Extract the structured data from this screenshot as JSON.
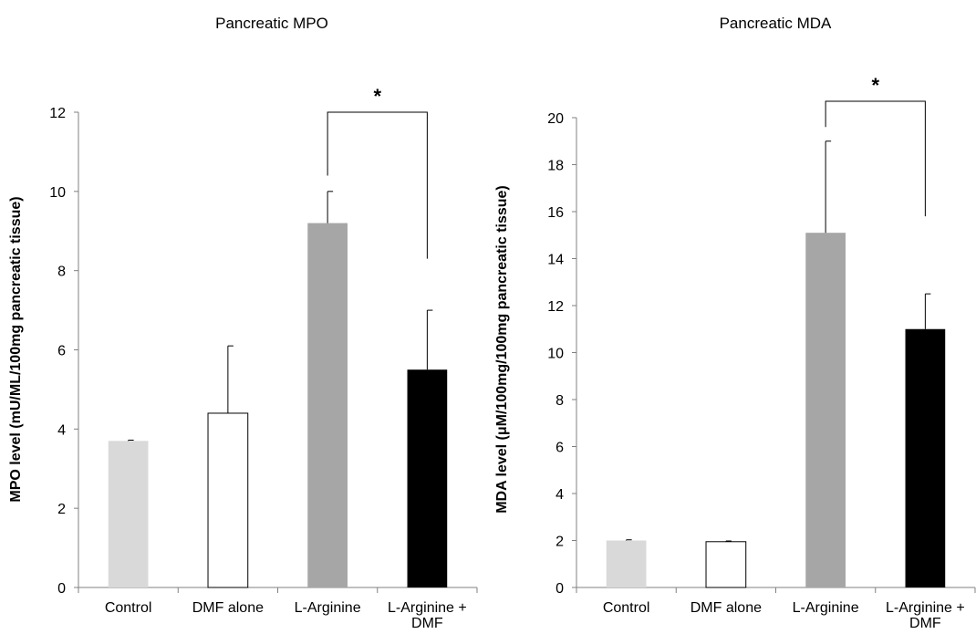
{
  "chart_data": [
    {
      "type": "bar",
      "title": "Pancreatic MPO",
      "ylabel": "MPO level (mU/ML/100mg pancreatic tissue)",
      "xlabel": "",
      "ylim": [
        0,
        12
      ],
      "yticks": [
        0,
        2,
        4,
        6,
        8,
        10,
        12
      ],
      "categories": [
        "Control",
        "DMF alone",
        "L-Arginine",
        "L-Arginine + DMF"
      ],
      "category_lines": [
        [
          "Control"
        ],
        [
          "DMF alone"
        ],
        [
          "L-Arginine"
        ],
        [
          "L-Arginine +",
          "DMF"
        ]
      ],
      "values": [
        3.7,
        4.4,
        9.2,
        5.5
      ],
      "errors": [
        0.02,
        1.7,
        0.8,
        1.5
      ],
      "bar_colors": [
        "#d9d9d9",
        "#ffffff",
        "#a6a6a6",
        "#000000"
      ],
      "significance": {
        "from": 2,
        "to": 3,
        "label": "*",
        "level": 12,
        "left_drop": 10.4,
        "right_drop": 8.3
      },
      "grid": false,
      "legend": "none"
    },
    {
      "type": "bar",
      "title": "Pancreatic MDA",
      "ylabel": "MDA level (μM/100mg/100mg pancreatic tissue)",
      "xlabel": "",
      "ylim": [
        0,
        20
      ],
      "yticks": [
        0,
        2,
        4,
        6,
        8,
        10,
        12,
        14,
        16,
        18,
        20
      ],
      "categories": [
        "Control",
        "DMF alone",
        "L-Arginine",
        "L-Arginine + DMF"
      ],
      "category_lines": [
        [
          "Control"
        ],
        [
          "DMF alone"
        ],
        [
          "L-Arginine"
        ],
        [
          "L-Arginine +",
          "DMF"
        ]
      ],
      "values": [
        2.0,
        1.95,
        15.1,
        11.0
      ],
      "errors": [
        0.03,
        0.03,
        3.9,
        1.5
      ],
      "bar_colors": [
        "#d9d9d9",
        "#ffffff",
        "#a6a6a6",
        "#000000"
      ],
      "significance": {
        "from": 2,
        "to": 3,
        "label": "*",
        "level": 20.7,
        "left_drop": 19.6,
        "right_drop": 15.8
      },
      "grid": false,
      "legend": "none"
    }
  ]
}
